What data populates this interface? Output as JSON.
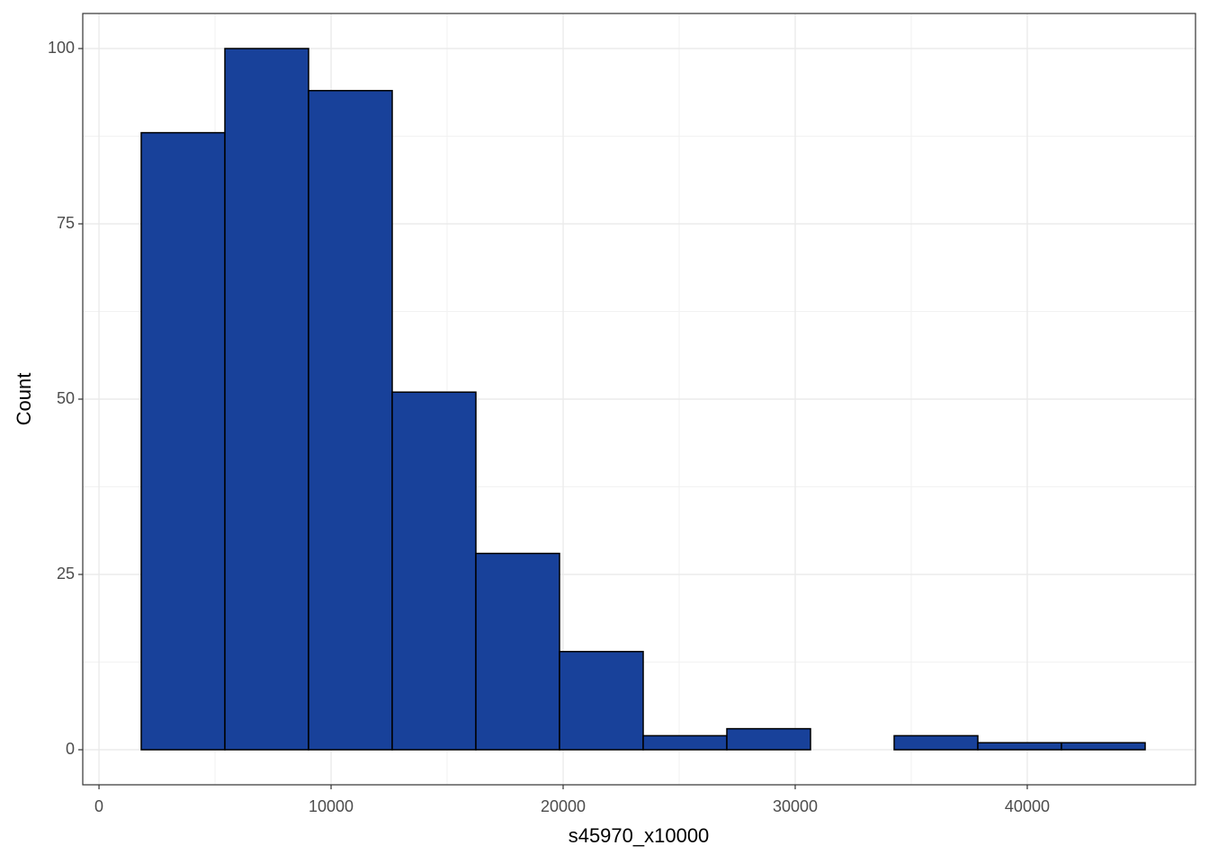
{
  "chart_data": {
    "type": "histogram",
    "x_label": "s45970_x10000",
    "y_label": "Count",
    "bins": [
      1820,
      5425,
      9030,
      12635,
      16240,
      19845,
      23450,
      27055,
      30660,
      34265,
      37870,
      41475,
      45080
    ],
    "values": [
      88,
      100,
      94,
      51,
      28,
      14,
      2,
      3,
      0,
      2,
      1,
      1
    ],
    "color": "#18419a",
    "edge_color": "#000000",
    "xlim": [
      -700,
      47250
    ],
    "xticks": [
      0,
      10000,
      20000,
      30000,
      40000
    ],
    "ylim": [
      -5,
      105
    ],
    "yticks": [
      0,
      25,
      50,
      75,
      100
    ],
    "grid": true
  }
}
